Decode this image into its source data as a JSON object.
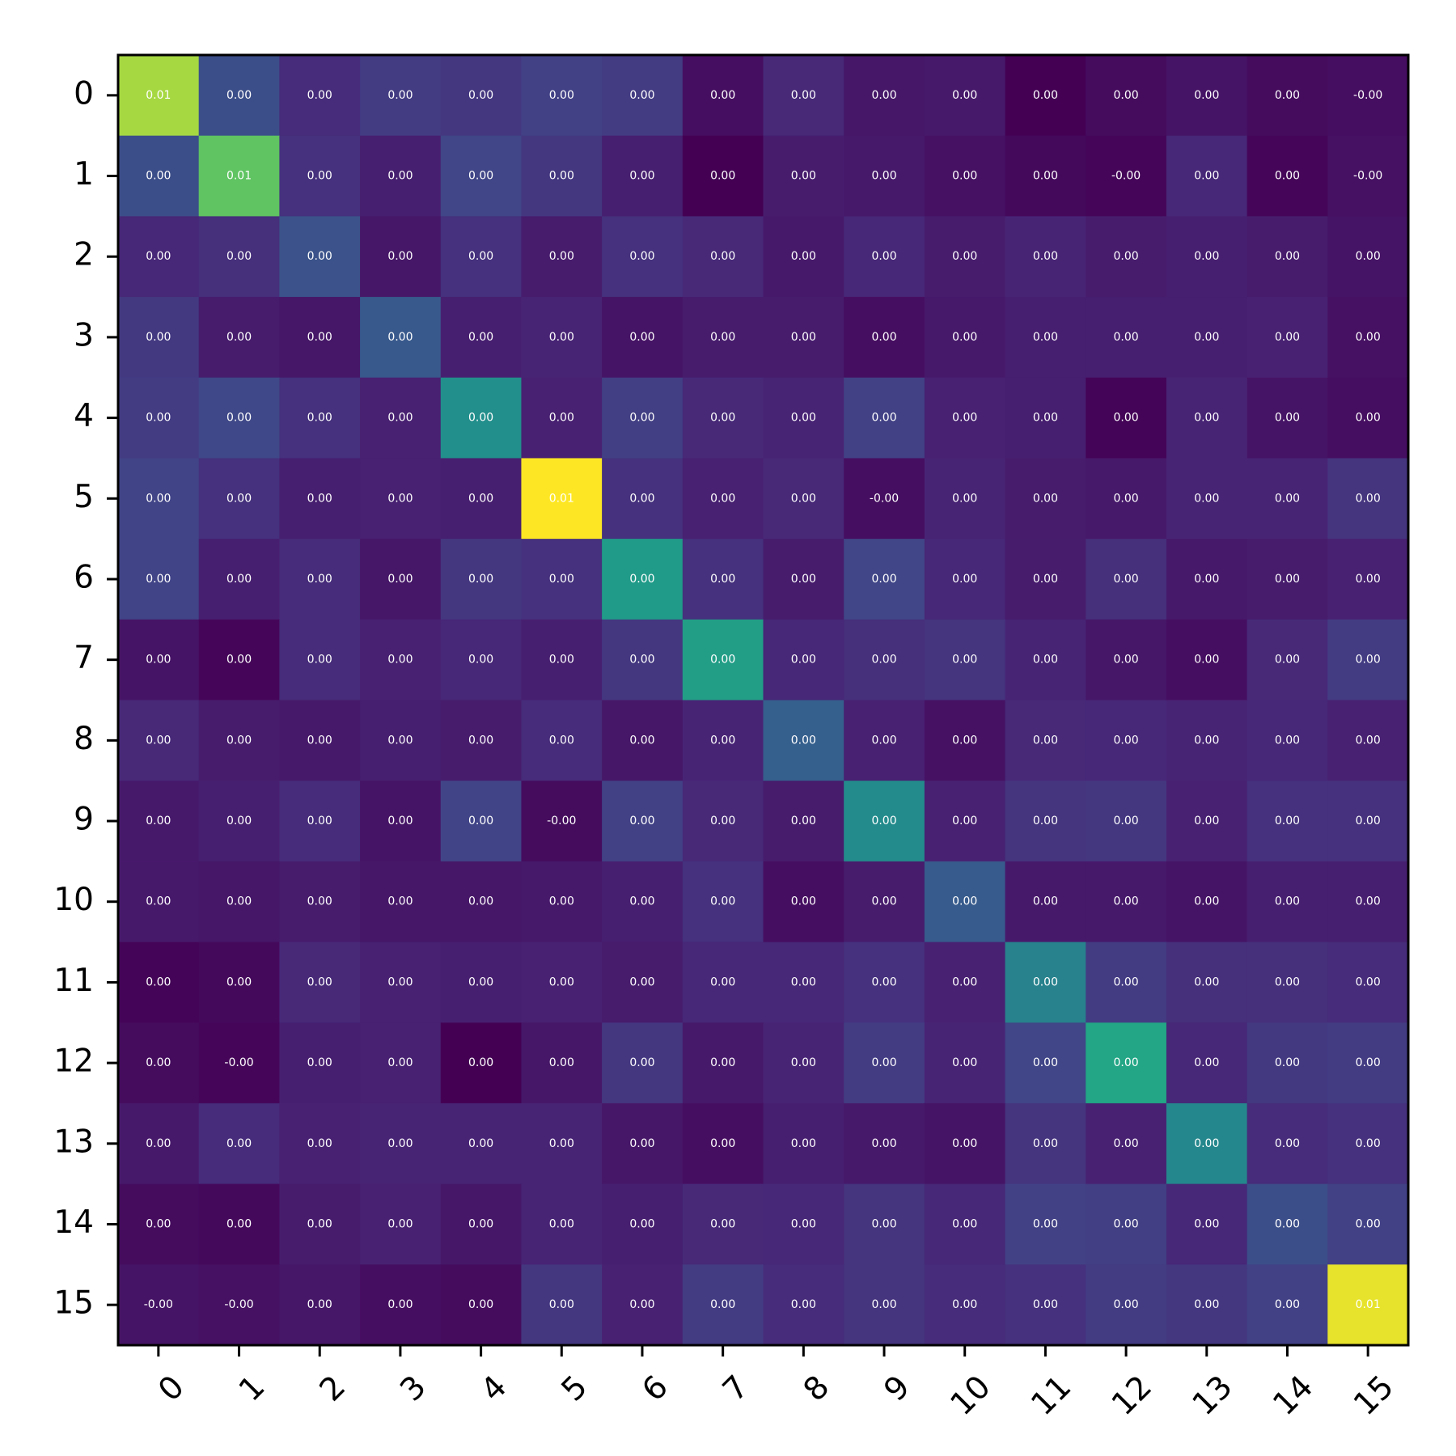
{
  "chart_data": {
    "type": "heatmap",
    "colormap": "viridis",
    "x_ticks": [
      "0",
      "1",
      "2",
      "3",
      "4",
      "5",
      "6",
      "7",
      "8",
      "9",
      "10",
      "11",
      "12",
      "13",
      "14",
      "15"
    ],
    "y_ticks": [
      "0",
      "1",
      "2",
      "3",
      "4",
      "5",
      "6",
      "7",
      "8",
      "9",
      "10",
      "11",
      "12",
      "13",
      "14",
      "15"
    ],
    "x_tick_rotation": 45,
    "grid": false,
    "legend": "none",
    "value_range": [
      0.0,
      1.0
    ],
    "intensity": [
      [
        0.92,
        0.3,
        0.16,
        0.22,
        0.2,
        0.24,
        0.22,
        0.05,
        0.15,
        0.08,
        0.09,
        0.0,
        0.04,
        0.07,
        0.04,
        0.05
      ],
      [
        0.3,
        0.84,
        0.18,
        0.11,
        0.26,
        0.2,
        0.11,
        0.0,
        0.1,
        0.09,
        0.06,
        0.03,
        0.02,
        0.14,
        0.02,
        0.06
      ],
      [
        0.14,
        0.17,
        0.32,
        0.08,
        0.18,
        0.1,
        0.18,
        0.15,
        0.09,
        0.14,
        0.1,
        0.13,
        0.1,
        0.11,
        0.1,
        0.07
      ],
      [
        0.21,
        0.1,
        0.08,
        0.35,
        0.11,
        0.13,
        0.07,
        0.1,
        0.1,
        0.05,
        0.09,
        0.11,
        0.11,
        0.11,
        0.12,
        0.06
      ],
      [
        0.22,
        0.27,
        0.18,
        0.12,
        0.62,
        0.12,
        0.23,
        0.15,
        0.13,
        0.24,
        0.12,
        0.11,
        0.01,
        0.13,
        0.07,
        0.05
      ],
      [
        0.25,
        0.18,
        0.11,
        0.12,
        0.11,
        1.0,
        0.18,
        0.12,
        0.15,
        0.05,
        0.13,
        0.1,
        0.09,
        0.13,
        0.13,
        0.19
      ],
      [
        0.25,
        0.11,
        0.16,
        0.08,
        0.2,
        0.18,
        0.68,
        0.18,
        0.1,
        0.26,
        0.14,
        0.1,
        0.17,
        0.09,
        0.1,
        0.12
      ],
      [
        0.07,
        0.02,
        0.16,
        0.12,
        0.14,
        0.11,
        0.2,
        0.7,
        0.14,
        0.17,
        0.19,
        0.13,
        0.08,
        0.05,
        0.15,
        0.22
      ],
      [
        0.15,
        0.1,
        0.09,
        0.11,
        0.1,
        0.16,
        0.08,
        0.13,
        0.38,
        0.12,
        0.06,
        0.15,
        0.14,
        0.13,
        0.14,
        0.12
      ],
      [
        0.09,
        0.11,
        0.16,
        0.07,
        0.25,
        0.04,
        0.24,
        0.15,
        0.1,
        0.6,
        0.12,
        0.19,
        0.2,
        0.12,
        0.18,
        0.18
      ],
      [
        0.09,
        0.08,
        0.1,
        0.08,
        0.08,
        0.09,
        0.11,
        0.18,
        0.05,
        0.1,
        0.36,
        0.09,
        0.09,
        0.07,
        0.11,
        0.11
      ],
      [
        0.01,
        0.03,
        0.15,
        0.12,
        0.11,
        0.12,
        0.1,
        0.14,
        0.14,
        0.18,
        0.12,
        0.55,
        0.22,
        0.17,
        0.17,
        0.16
      ],
      [
        0.04,
        0.02,
        0.11,
        0.12,
        0.0,
        0.08,
        0.2,
        0.09,
        0.13,
        0.22,
        0.13,
        0.26,
        0.74,
        0.14,
        0.21,
        0.22
      ],
      [
        0.09,
        0.16,
        0.12,
        0.13,
        0.13,
        0.13,
        0.08,
        0.05,
        0.11,
        0.09,
        0.07,
        0.19,
        0.12,
        0.58,
        0.16,
        0.18
      ],
      [
        0.04,
        0.03,
        0.1,
        0.12,
        0.08,
        0.13,
        0.11,
        0.15,
        0.14,
        0.19,
        0.14,
        0.24,
        0.23,
        0.14,
        0.3,
        0.24
      ],
      [
        0.07,
        0.06,
        0.08,
        0.05,
        0.04,
        0.2,
        0.12,
        0.22,
        0.16,
        0.19,
        0.16,
        0.18,
        0.22,
        0.2,
        0.24,
        0.98
      ]
    ],
    "cell_labels": [
      [
        "0.01",
        "0.00",
        "0.00",
        "0.00",
        "0.00",
        "0.00",
        "0.00",
        "0.00",
        "0.00",
        "0.00",
        "0.00",
        "0.00",
        "0.00",
        "0.00",
        "0.00",
        "-0.00"
      ],
      [
        "0.00",
        "0.01",
        "0.00",
        "0.00",
        "0.00",
        "0.00",
        "0.00",
        "0.00",
        "0.00",
        "0.00",
        "0.00",
        "0.00",
        "-0.00",
        "0.00",
        "0.00",
        "-0.00"
      ],
      [
        "0.00",
        "0.00",
        "0.00",
        "0.00",
        "0.00",
        "0.00",
        "0.00",
        "0.00",
        "0.00",
        "0.00",
        "0.00",
        "0.00",
        "0.00",
        "0.00",
        "0.00",
        "0.00"
      ],
      [
        "0.00",
        "0.00",
        "0.00",
        "0.00",
        "0.00",
        "0.00",
        "0.00",
        "0.00",
        "0.00",
        "0.00",
        "0.00",
        "0.00",
        "0.00",
        "0.00",
        "0.00",
        "0.00"
      ],
      [
        "0.00",
        "0.00",
        "0.00",
        "0.00",
        "0.00",
        "0.00",
        "0.00",
        "0.00",
        "0.00",
        "0.00",
        "0.00",
        "0.00",
        "0.00",
        "0.00",
        "0.00",
        "0.00"
      ],
      [
        "0.00",
        "0.00",
        "0.00",
        "0.00",
        "0.00",
        "0.01",
        "0.00",
        "0.00",
        "0.00",
        "-0.00",
        "0.00",
        "0.00",
        "0.00",
        "0.00",
        "0.00",
        "0.00"
      ],
      [
        "0.00",
        "0.00",
        "0.00",
        "0.00",
        "0.00",
        "0.00",
        "0.00",
        "0.00",
        "0.00",
        "0.00",
        "0.00",
        "0.00",
        "0.00",
        "0.00",
        "0.00",
        "0.00"
      ],
      [
        "0.00",
        "0.00",
        "0.00",
        "0.00",
        "0.00",
        "0.00",
        "0.00",
        "0.00",
        "0.00",
        "0.00",
        "0.00",
        "0.00",
        "0.00",
        "0.00",
        "0.00",
        "0.00"
      ],
      [
        "0.00",
        "0.00",
        "0.00",
        "0.00",
        "0.00",
        "0.00",
        "0.00",
        "0.00",
        "0.00",
        "0.00",
        "0.00",
        "0.00",
        "0.00",
        "0.00",
        "0.00",
        "0.00"
      ],
      [
        "0.00",
        "0.00",
        "0.00",
        "0.00",
        "0.00",
        "-0.00",
        "0.00",
        "0.00",
        "0.00",
        "0.00",
        "0.00",
        "0.00",
        "0.00",
        "0.00",
        "0.00",
        "0.00"
      ],
      [
        "0.00",
        "0.00",
        "0.00",
        "0.00",
        "0.00",
        "0.00",
        "0.00",
        "0.00",
        "0.00",
        "0.00",
        "0.00",
        "0.00",
        "0.00",
        "0.00",
        "0.00",
        "0.00"
      ],
      [
        "0.00",
        "0.00",
        "0.00",
        "0.00",
        "0.00",
        "0.00",
        "0.00",
        "0.00",
        "0.00",
        "0.00",
        "0.00",
        "0.00",
        "0.00",
        "0.00",
        "0.00",
        "0.00"
      ],
      [
        "0.00",
        "-0.00",
        "0.00",
        "0.00",
        "0.00",
        "0.00",
        "0.00",
        "0.00",
        "0.00",
        "0.00",
        "0.00",
        "0.00",
        "0.00",
        "0.00",
        "0.00",
        "0.00"
      ],
      [
        "0.00",
        "0.00",
        "0.00",
        "0.00",
        "0.00",
        "0.00",
        "0.00",
        "0.00",
        "0.00",
        "0.00",
        "0.00",
        "0.00",
        "0.00",
        "0.00",
        "0.00",
        "0.00"
      ],
      [
        "0.00",
        "0.00",
        "0.00",
        "0.00",
        "0.00",
        "0.00",
        "0.00",
        "0.00",
        "0.00",
        "0.00",
        "0.00",
        "0.00",
        "0.00",
        "0.00",
        "0.00",
        "0.00"
      ],
      [
        "-0.00",
        "-0.00",
        "0.00",
        "0.00",
        "0.00",
        "0.00",
        "0.00",
        "0.00",
        "0.00",
        "0.00",
        "0.00",
        "0.00",
        "0.00",
        "0.00",
        "0.00",
        "0.01"
      ]
    ]
  }
}
